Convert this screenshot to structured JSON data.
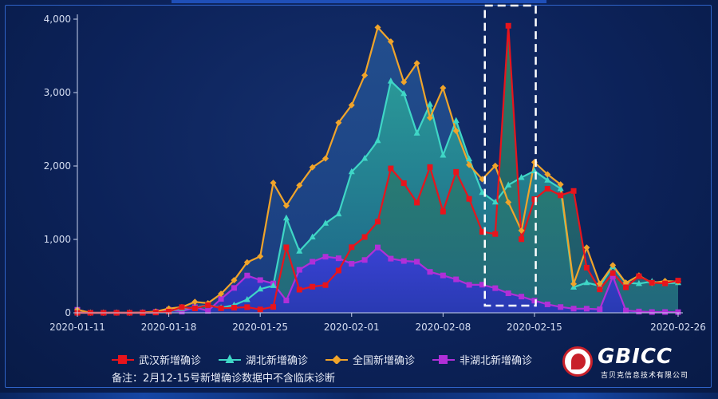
{
  "chart_data": {
    "type": "area",
    "title": "",
    "xlabel": "",
    "ylabel": "",
    "ylim": [
      0,
      4000
    ],
    "yticks": [
      0,
      1000,
      2000,
      3000,
      4000
    ],
    "ytick_labels": [
      "0",
      "1,000",
      "2,000",
      "3,000",
      "4,000"
    ],
    "x": [
      "2020-01-11",
      "2020-01-12",
      "2020-01-13",
      "2020-01-14",
      "2020-01-15",
      "2020-01-16",
      "2020-01-17",
      "2020-01-18",
      "2020-01-19",
      "2020-01-20",
      "2020-01-21",
      "2020-01-22",
      "2020-01-23",
      "2020-01-24",
      "2020-01-25",
      "2020-01-26",
      "2020-01-27",
      "2020-01-28",
      "2020-01-29",
      "2020-01-30",
      "2020-01-31",
      "2020-02-01",
      "2020-02-02",
      "2020-02-03",
      "2020-02-04",
      "2020-02-05",
      "2020-02-06",
      "2020-02-07",
      "2020-02-08",
      "2020-02-09",
      "2020-02-10",
      "2020-02-11",
      "2020-02-12",
      "2020-02-13",
      "2020-02-14",
      "2020-02-15",
      "2020-02-16",
      "2020-02-17",
      "2020-02-18",
      "2020-02-19",
      "2020-02-20",
      "2020-02-21",
      "2020-02-22",
      "2020-02-23",
      "2020-02-24",
      "2020-02-25",
      "2020-02-26"
    ],
    "xtick_labels": [
      "2020-01-11",
      "2020-01-18",
      "2020-01-25",
      "2020-02-01",
      "2020-02-08",
      "2020-02-15",
      "2020-02-26"
    ],
    "series": [
      {
        "name": "武汉新增确诊",
        "color": "#e8141c",
        "marker": "square",
        "values": [
          0,
          0,
          0,
          0,
          0,
          0,
          4,
          17,
          77,
          60,
          105,
          62,
          70,
          77,
          46,
          80,
          892,
          315,
          356,
          378,
          576,
          894,
          1033,
          1242,
          1967,
          1766,
          1501,
          1985,
          1379,
          1920,
          1552,
          1104,
          1074,
          3910,
          1003,
          1548,
          1690,
          1600,
          1660,
          615,
          319,
          541,
          348,
          499,
          410,
          401,
          439
        ]
      },
      {
        "name": "湖北新增确诊",
        "color": "#3fd6c6",
        "marker": "triangle",
        "values": [
          0,
          0,
          0,
          0,
          0,
          0,
          4,
          17,
          59,
          72,
          105,
          69,
          105,
          180,
          323,
          371,
          1291,
          840,
          1032,
          1220,
          1347,
          1921,
          2103,
          2345,
          3156,
          2987,
          2447,
          2841,
          2147,
          2618,
          2097,
          1638,
          1508,
          1741,
          1843,
          1933,
          1807,
          1693,
          349,
          411,
          366,
          631,
          409,
          398,
          427,
          399,
          410
        ]
      },
      {
        "name": "全国新增确诊",
        "color": "#f0a42a",
        "marker": "diamond",
        "values": [
          41,
          0,
          0,
          1,
          0,
          4,
          17,
          59,
          77,
          149,
          131,
          259,
          444,
          688,
          769,
          1771,
          1459,
          1737,
          1982,
          2102,
          2590,
          2829,
          3235,
          3887,
          3694,
          3143,
          3399,
          2656,
          3062,
          2478,
          2015,
          1820,
          2003,
          1506,
          1121,
          2051,
          1886,
          1749,
          394,
          889,
          397,
          648,
          409,
          508,
          406,
          433,
          427
        ]
      },
      {
        "name": "非湖北新增确诊",
        "color": "#b02fd8",
        "marker": "square",
        "values": [
          41,
          0,
          0,
          1,
          0,
          4,
          13,
          42,
          18,
          77,
          26,
          190,
          339,
          508,
          446,
          400,
          168,
          586,
          696,
          764,
          743,
          668,
          720,
          890,
          738,
          706,
          696,
          558,
          509,
          456,
          381,
          383,
          336,
          266,
          221,
          166,
          115,
          79,
          57,
          56,
          48,
          495,
          31,
          18,
          11,
          11,
          9
        ]
      }
    ]
  },
  "legend": {
    "wuhan": "武汉新增确诊",
    "hubei": "湖北新增确诊",
    "national": "全国新增确诊",
    "nonhubei": "非湖北新增确诊"
  },
  "note": "备注：2月12-15号新增确诊数据中不含临床诊断",
  "logo": {
    "name": "GBICC",
    "subtitle": "吉贝克信息技术有限公司",
    "icon": "gbicc-logo-icon",
    "brand_color": "#c8202a"
  },
  "highlight": {
    "label": "2月12-15号",
    "range": [
      "2020-02-12",
      "2020-02-15"
    ]
  }
}
